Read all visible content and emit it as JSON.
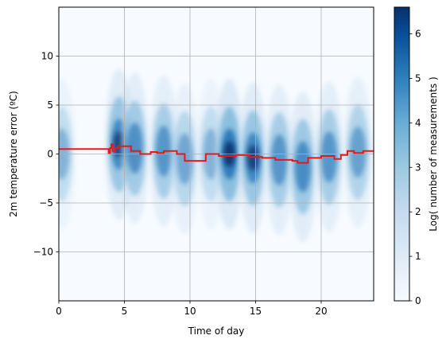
{
  "chart_data": {
    "type": "heatmap",
    "xlabel": "Time of day",
    "ylabel": "2m temperature error (ºC)",
    "xlim": [
      0,
      24
    ],
    "ylim": [
      -15,
      15
    ],
    "xticks": [
      0,
      5,
      10,
      15,
      20
    ],
    "yticks": [
      -10,
      -5,
      0,
      5,
      10
    ],
    "grid": true,
    "colormap": "Blues",
    "colorbar": {
      "label": "Log( number of measurements )",
      "range": [
        0,
        6.6
      ],
      "ticks": [
        0,
        1,
        2,
        3,
        4,
        5,
        6
      ]
    },
    "density_clusters": [
      {
        "hour": 0.2,
        "value": 0.0,
        "intensity": 0.45
      },
      {
        "hour": 4.6,
        "value": 1.0,
        "intensity": 0.85
      },
      {
        "hour": 5.8,
        "value": 0.6,
        "intensity": 0.75
      },
      {
        "hour": 8.0,
        "value": 0.3,
        "intensity": 0.7
      },
      {
        "hour": 9.6,
        "value": -0.5,
        "intensity": 0.55
      },
      {
        "hour": 11.6,
        "value": 0.0,
        "intensity": 0.45
      },
      {
        "hour": 13.0,
        "value": 0.0,
        "intensity": 1.0
      },
      {
        "hour": 14.8,
        "value": -0.4,
        "intensity": 0.85
      },
      {
        "hour": 16.8,
        "value": -0.6,
        "intensity": 0.7
      },
      {
        "hour": 18.6,
        "value": -1.3,
        "intensity": 0.8
      },
      {
        "hour": 20.6,
        "value": -0.3,
        "intensity": 0.7
      },
      {
        "hour": 22.8,
        "value": 0.2,
        "intensity": 0.6
      }
    ],
    "median_line": {
      "color": "#e31a1c",
      "x": [
        0,
        3.8,
        3.8,
        3.9,
        3.9,
        4.0,
        4.0,
        4.1,
        4.1,
        4.3,
        4.3,
        4.5,
        4.5,
        5.5,
        5.5,
        6.2,
        6.2,
        7.0,
        7.0,
        7.5,
        7.5,
        8.0,
        8.0,
        9.0,
        9.0,
        9.6,
        9.6,
        11.2,
        11.2,
        12.2,
        12.2,
        13.5,
        13.5,
        14.5,
        14.5,
        15.5,
        15.5,
        16.5,
        16.5,
        17.8,
        17.8,
        18.2,
        18.2,
        19.0,
        19.0,
        20.0,
        20.0,
        21.0,
        21.0,
        21.5,
        21.5,
        22.0,
        22.0,
        22.5,
        22.5,
        23.2,
        23.2,
        24
      ],
      "y": [
        0.5,
        0.5,
        0.1,
        0.1,
        0.6,
        0.6,
        1.0,
        1.0,
        0.3,
        0.3,
        0.6,
        0.6,
        0.8,
        0.8,
        0.3,
        0.3,
        0.0,
        0.0,
        0.2,
        0.2,
        0.1,
        0.1,
        0.3,
        0.3,
        0.0,
        0.0,
        -0.7,
        -0.7,
        0.0,
        0.0,
        -0.2,
        -0.2,
        -0.1,
        -0.1,
        -0.3,
        -0.3,
        -0.4,
        -0.4,
        -0.6,
        -0.6,
        -0.7,
        -0.7,
        -0.9,
        -0.9,
        -0.4,
        -0.4,
        -0.2,
        -0.2,
        -0.5,
        -0.5,
        -0.1,
        -0.1,
        0.3,
        0.3,
        0.1,
        0.1,
        0.3,
        0.3
      ]
    }
  }
}
